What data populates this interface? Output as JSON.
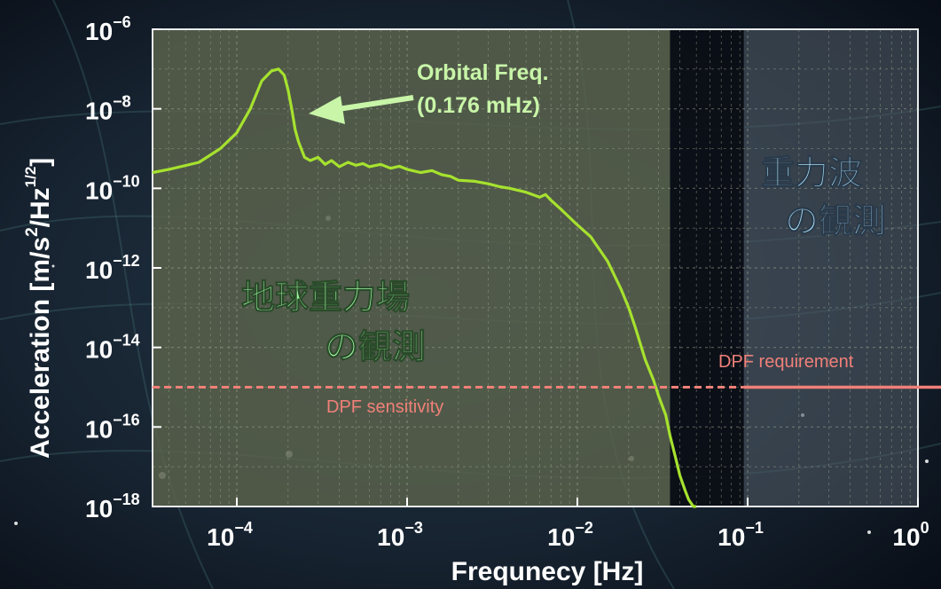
{
  "chart_data": {
    "type": "line",
    "xscale": "log",
    "yscale": "log",
    "xlim": [
      3.2e-05,
      1
    ],
    "ylim": [
      1e-18,
      1e-06
    ],
    "xlabel": "Frequnecy  [Hz]",
    "ylabel_main": "Acceleration  [m/s",
    "ylabel_sup2": "2",
    "ylabel_mid": "/Hz",
    "ylabel_sup": "1/2",
    "ylabel_end": "]",
    "x_ticks": [
      {
        "value": 0.0001,
        "base": "10",
        "exp": "−4"
      },
      {
        "value": 0.001,
        "base": "10",
        "exp": "−3"
      },
      {
        "value": 0.01,
        "base": "10",
        "exp": "−2"
      },
      {
        "value": 0.1,
        "base": "10",
        "exp": "−1"
      },
      {
        "value": 1,
        "base": "10",
        "exp": "0"
      }
    ],
    "y_ticks": [
      {
        "value": 1e-06,
        "base": "10",
        "exp": "−6"
      },
      {
        "value": 1e-08,
        "base": "10",
        "exp": "−8"
      },
      {
        "value": 1e-10,
        "base": "10",
        "exp": "−10"
      },
      {
        "value": 1e-12,
        "base": "10",
        "exp": "−12"
      },
      {
        "value": 1e-14,
        "base": "10",
        "exp": "−14"
      },
      {
        "value": 1e-16,
        "base": "10",
        "exp": "−16"
      },
      {
        "value": 1e-18,
        "base": "10",
        "exp": "−18"
      }
    ],
    "grid": true,
    "series": [
      {
        "color": "#a6e22e",
        "x": [
          3.2e-05,
          4e-05,
          6e-05,
          8e-05,
          0.0001,
          0.00012,
          0.00014,
          0.00016,
          0.000176,
          0.00019,
          0.0002,
          0.00021,
          0.00022,
          0.00023,
          0.00025,
          0.00027,
          0.0003,
          0.00033,
          0.00036,
          0.0004,
          0.00045,
          0.0005,
          0.00055,
          0.0006,
          0.0007,
          0.0008,
          0.0009,
          0.001,
          0.0012,
          0.0014,
          0.0016,
          0.0018,
          0.002,
          0.0025,
          0.003,
          0.0035,
          0.004,
          0.005,
          0.006,
          0.0065,
          0.007,
          0.008,
          0.01,
          0.012,
          0.015,
          0.018,
          0.02,
          0.022,
          0.025,
          0.028,
          0.03,
          0.033,
          0.035,
          0.038,
          0.04,
          0.043,
          0.045,
          0.048,
          0.05
        ],
        "y": [
          2.5e-10,
          3e-10,
          4.5e-10,
          1e-09,
          2.5e-09,
          1e-08,
          5e-08,
          9e-08,
          1e-07,
          7e-08,
          3e-08,
          1e-08,
          3e-09,
          1.5e-09,
          6e-10,
          5e-10,
          6e-10,
          4e-10,
          5e-10,
          3.5e-10,
          4.5e-10,
          3.8e-10,
          4.2e-10,
          3.5e-10,
          4e-10,
          3.2e-10,
          3.6e-10,
          3e-10,
          2.5e-10,
          2.8e-10,
          2.2e-10,
          2e-10,
          1.6e-10,
          1.5e-10,
          1.3e-10,
          1.1e-10,
          1e-10,
          8e-11,
          6e-11,
          7e-11,
          5e-11,
          3e-11,
          1.2e-11,
          6e-12,
          1.5e-12,
          3e-13,
          1e-13,
          3e-14,
          5e-15,
          1.5e-15,
          6e-16,
          2e-16,
          6e-17,
          1.5e-17,
          6e-18,
          2.5e-18,
          1.5e-18,
          1e-18,
          8e-19
        ]
      }
    ],
    "reference_line": {
      "y": 1e-15,
      "color": "#f08078"
    },
    "annotations": {
      "orbital_line1": "Orbital Freq.",
      "orbital_line2": "(0.176 mHz)",
      "orbital_x": 0.000176,
      "dpf_requirement": "DPF requirement",
      "dpf_sensitivity": "DPF sensitivity",
      "region_earth_line1": "地球重力場",
      "region_earth_line2": "の観測",
      "region_gw_line1": "重力波",
      "region_gw_line2": "の観測"
    },
    "colors": {
      "curve": "#a6e22e",
      "orbital_text": "#c8f5a8",
      "earth_text": "#9ef7a0",
      "gw_text": "#a8dcf5",
      "dpf": "#f08078",
      "region_earth": "#59624b",
      "region_gw": "#4c5660"
    }
  }
}
